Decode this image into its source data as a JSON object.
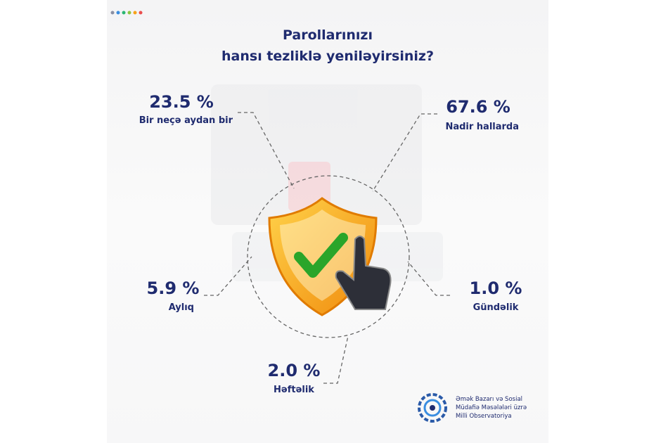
{
  "header": {
    "title_lines": [
      "Parollarınızı",
      "hansı tezliklə yeniləyirsiniz?"
    ]
  },
  "items": [
    {
      "value": "23.5 %",
      "label": "Bir neçə aydan bir"
    },
    {
      "value": "67.6 %",
      "label": "Nadir hallarda"
    },
    {
      "value": "5.9 %",
      "label": "Aylıq"
    },
    {
      "value": "1.0 %",
      "label": "Gündəlik"
    },
    {
      "value": "2.0 %",
      "label": "Həftəlik"
    }
  ],
  "logo": {
    "lines": [
      "Əmək Bazarı və Sosial",
      "Müdafiə Məsələləri üzrə",
      "Milli Observatoriya"
    ]
  }
}
